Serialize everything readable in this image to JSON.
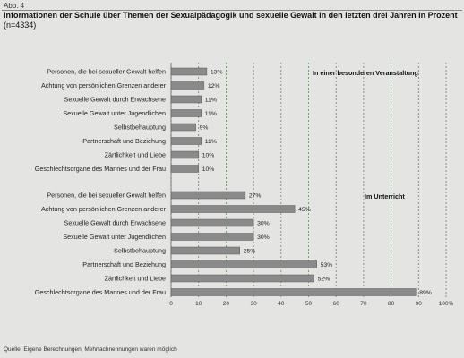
{
  "figure_label": "Abb. 4",
  "title": "Informationen der Schule über Themen der Sexualpädagogik und sexuelle Gewalt in den letzten drei Jahren in Prozent",
  "sample": "(n=4334)",
  "source": "Quelle: Eigene Berechnungen; Mehrfachnennungen waren möglich",
  "chart_data": {
    "type": "bar",
    "orientation": "horizontal",
    "xlim": [
      0,
      100
    ],
    "x_ticks": [
      "0",
      "10",
      "20",
      "30",
      "40",
      "50",
      "60",
      "70",
      "80",
      "90",
      "100%"
    ],
    "grid": "vertical dashed lines at every tick",
    "bar_color": "#8a8a8a",
    "groups": [
      {
        "name": "In einer besonderen Veranstaltung",
        "categories": [
          "Personen, die bei sexueller Gewalt helfen",
          "Achtung von persönlichen Grenzen anderer",
          "Sexuelle Gewalt durch Erwachsene",
          "Sexuelle Gewalt unter Jugendlichen",
          "Selbstbehauptung",
          "Partnerschaft und Beziehung",
          "Zärtlichkeit und Liebe",
          "Geschlechtsorgane des Mannes und der Frau"
        ],
        "values": [
          13,
          12,
          11,
          11,
          9,
          11,
          10,
          10
        ],
        "labels": [
          "13%",
          "12%",
          "11%",
          "11%",
          "9%",
          "11%",
          "10%",
          "10%"
        ]
      },
      {
        "name": "Im Unterricht",
        "categories": [
          "Personen, die bei sexueller Gewalt helfen",
          "Achtung von persönlichen Grenzen anderer",
          "Sexuelle Gewalt durch Erwachsene",
          "Sexuelle Gewalt unter Jugendlichen",
          "Selbstbehauptung",
          "Partnerschaft und Beziehung",
          "Zärtlichkeit und Liebe",
          "Geschlechtsorgane des Mannes und der Frau"
        ],
        "values": [
          27,
          45,
          30,
          30,
          25,
          53,
          52,
          89
        ],
        "labels": [
          "27%",
          "45%",
          "30%",
          "30%",
          "25%",
          "53%",
          "52%",
          "89%"
        ]
      }
    ]
  }
}
